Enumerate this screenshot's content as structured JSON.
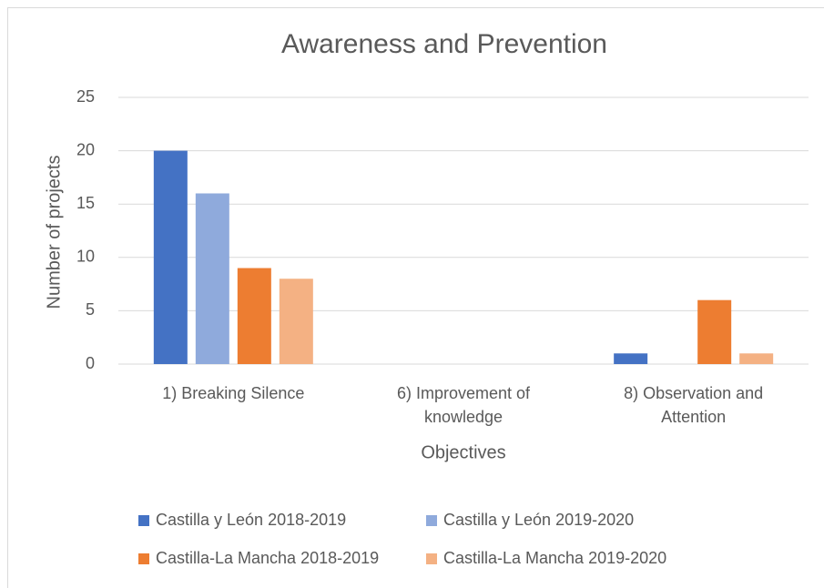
{
  "chart_data": {
    "type": "bar",
    "title": "Awareness and Prevention",
    "x_label": "Objectives",
    "y_label": "Number of projects",
    "categories": [
      "1) Breaking Silence",
      "6) Improvement of knowledge",
      "8) Observation and Attention"
    ],
    "series": [
      {
        "name": "Castilla y León 2018-2019",
        "color": "#4472c4",
        "values": [
          20,
          0,
          1
        ]
      },
      {
        "name": "Castilla y León 2019-2020",
        "color": "#8faadc",
        "values": [
          16,
          0,
          0
        ]
      },
      {
        "name": "Castilla-La Mancha 2018-2019",
        "color": "#ed7d31",
        "values": [
          9,
          0,
          6
        ]
      },
      {
        "name": "Castilla-La Mancha 2019-2020",
        "color": "#f4b183",
        "values": [
          8,
          0,
          1
        ]
      }
    ],
    "ylim": [
      0,
      25
    ],
    "yticks": [
      0,
      5,
      10,
      15,
      20,
      25
    ],
    "grid": true,
    "legend": "bottom"
  }
}
